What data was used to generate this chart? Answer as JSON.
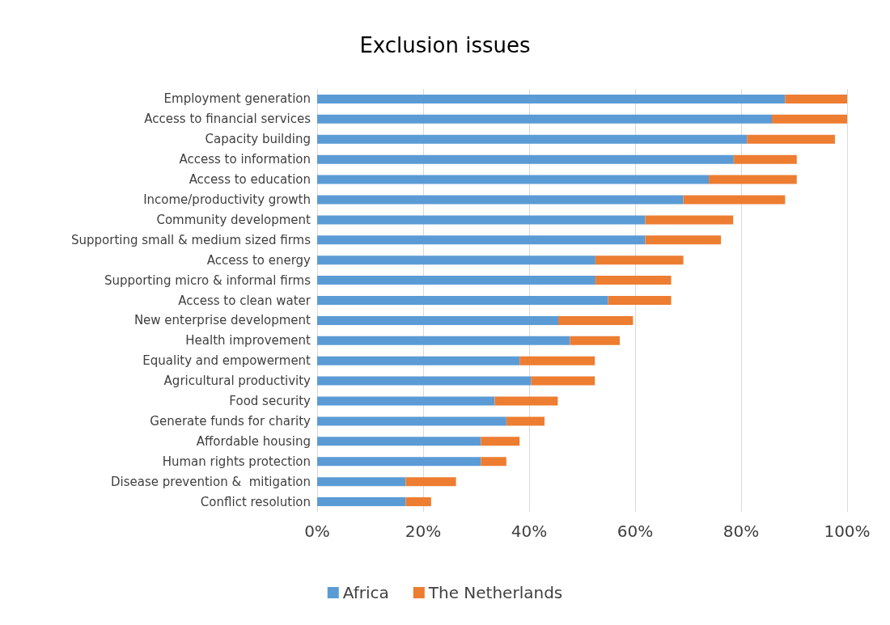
{
  "chart_data": {
    "type": "bar",
    "orientation": "horizontal",
    "stacked": true,
    "title": "Exclusion issues",
    "categories": [
      "Employment generation",
      "Access to financial services",
      "Capacity building",
      "Access to information",
      "Access to education",
      "Income/productivity growth",
      "Community development",
      "Supporting small & medium sized firms",
      "Access to energy",
      "Supporting micro & informal firms",
      "Access to clean water",
      "New enterprise development",
      "Health improvement",
      "Equality and empowerment",
      "Agricultural productivity",
      "Food security",
      "Generate funds for charity",
      "Affordable housing",
      "Human rights protection",
      "Disease prevention &  mitigation",
      "Conflict resolution"
    ],
    "series": [
      {
        "name": "Africa",
        "color": "#5b9bd5",
        "values": [
          88.3,
          85.8,
          81.1,
          78.6,
          73.9,
          69.1,
          61.9,
          61.9,
          52.5,
          52.5,
          54.9,
          45.5,
          47.7,
          38.2,
          40.4,
          33.5,
          35.7,
          30.9,
          30.9,
          16.7,
          16.7
        ]
      },
      {
        "name": "The Netherlands",
        "color": "#ed7d31",
        "values": [
          11.7,
          14.2,
          16.6,
          11.9,
          16.6,
          19.2,
          16.6,
          14.3,
          16.6,
          14.3,
          11.9,
          14.1,
          9.4,
          14.2,
          12.0,
          11.9,
          7.2,
          7.3,
          4.8,
          9.5,
          4.8
        ]
      }
    ],
    "xlim": [
      0,
      100
    ],
    "xticks": [
      {
        "value": 0,
        "label": "0%"
      },
      {
        "value": 20,
        "label": "20%"
      },
      {
        "value": 40,
        "label": "40%"
      },
      {
        "value": 60,
        "label": "60%"
      },
      {
        "value": 80,
        "label": "80%"
      },
      {
        "value": 100,
        "label": "100%"
      }
    ],
    "grid": "x",
    "legend": "bottom"
  }
}
